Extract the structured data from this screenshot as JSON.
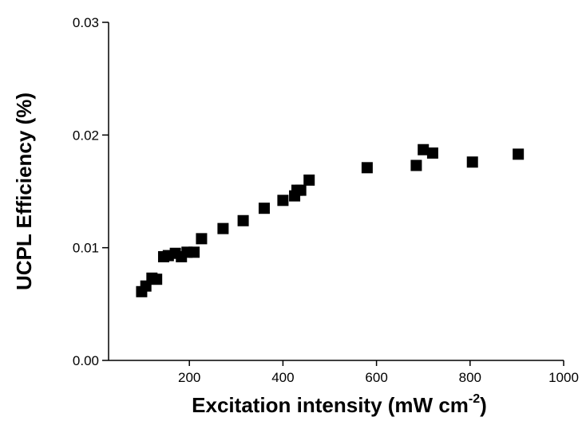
{
  "chart_data": {
    "type": "scatter",
    "title": "",
    "xlabel": "Excitation intensity (mW cm",
    "xlabel_superscript": "-2",
    "xlabel_suffix": ")",
    "ylabel": "UCPL Efficiency (%)",
    "xlim": [
      0,
      1000
    ],
    "ylim": [
      0.0,
      0.03
    ],
    "xticks": [
      200,
      400,
      600,
      800,
      1000
    ],
    "xtick_labels": [
      "200",
      "400",
      "600",
      "800",
      "1000"
    ],
    "yticks": [
      0.0,
      0.01,
      0.02,
      0.03
    ],
    "ytick_labels": [
      "0.00",
      "0.01",
      "0.02",
      "0.03"
    ],
    "grid": false,
    "marker": "square",
    "color": "#000000",
    "series": [
      {
        "points": [
          {
            "x": 98,
            "y": 0.0061
          },
          {
            "x": 107,
            "y": 0.0066
          },
          {
            "x": 120,
            "y": 0.0073
          },
          {
            "x": 130,
            "y": 0.0072
          },
          {
            "x": 145,
            "y": 0.0092
          },
          {
            "x": 155,
            "y": 0.0093
          },
          {
            "x": 170,
            "y": 0.0095
          },
          {
            "x": 183,
            "y": 0.0092
          },
          {
            "x": 195,
            "y": 0.0096
          },
          {
            "x": 210,
            "y": 0.0096
          },
          {
            "x": 226,
            "y": 0.0108
          },
          {
            "x": 272,
            "y": 0.0117
          },
          {
            "x": 315,
            "y": 0.0124
          },
          {
            "x": 360,
            "y": 0.0135
          },
          {
            "x": 400,
            "y": 0.0142
          },
          {
            "x": 425,
            "y": 0.0146
          },
          {
            "x": 430,
            "y": 0.0151
          },
          {
            "x": 438,
            "y": 0.0151
          },
          {
            "x": 456,
            "y": 0.016
          },
          {
            "x": 580,
            "y": 0.0171
          },
          {
            "x": 685,
            "y": 0.0173
          },
          {
            "x": 700,
            "y": 0.0187
          },
          {
            "x": 720,
            "y": 0.0184
          },
          {
            "x": 805,
            "y": 0.0176
          },
          {
            "x": 903,
            "y": 0.0183
          }
        ]
      }
    ]
  }
}
